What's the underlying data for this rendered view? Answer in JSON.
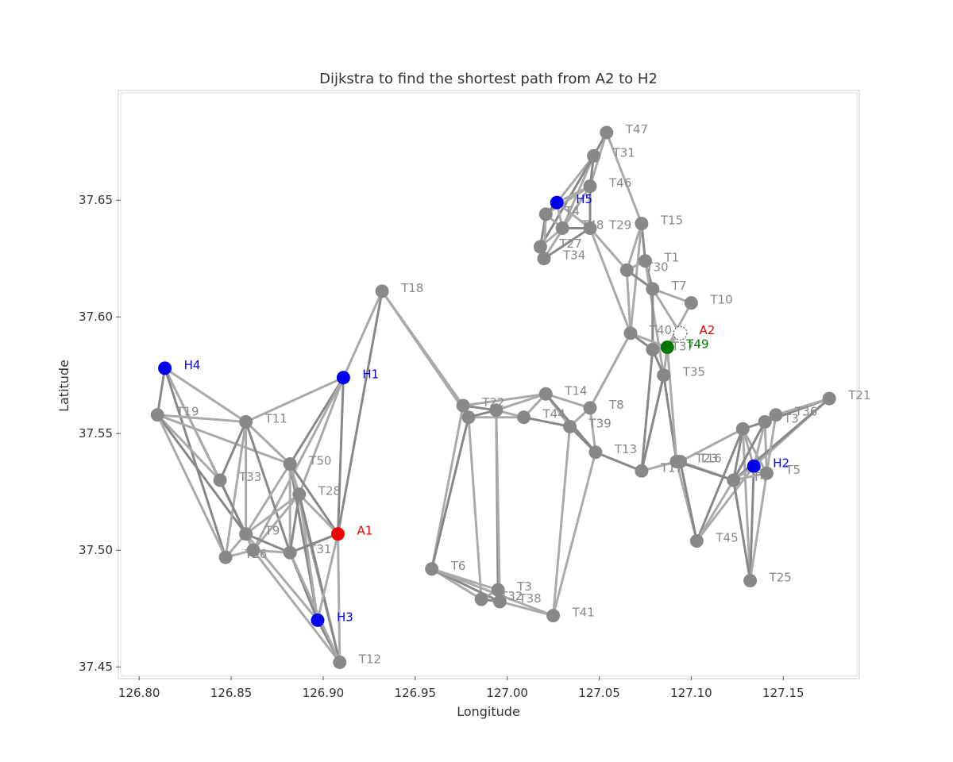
{
  "chart_data": {
    "type": "scatter",
    "title": "Dijkstra to find the shortest path from A2 to H2",
    "xlabel": "Longitude",
    "ylabel": "Latitude",
    "xlim": [
      126.79,
      127.19
    ],
    "ylim": [
      37.446,
      37.696
    ],
    "xticks": [
      "126.80",
      "126.85",
      "126.90",
      "126.95",
      "127.00",
      "127.05",
      "127.10",
      "127.15"
    ],
    "xtick_values": [
      126.8,
      126.85,
      126.9,
      126.95,
      127.0,
      127.05,
      127.1,
      127.15
    ],
    "yticks": [
      "37.45",
      "37.50",
      "37.55",
      "37.60",
      "37.65"
    ],
    "ytick_values": [
      37.45,
      37.5,
      37.55,
      37.6,
      37.65
    ],
    "grid": false,
    "colors": {
      "hospital": "#0000ee",
      "accident": "#ee0000",
      "path": "#007700",
      "node": "#888888",
      "edge_light": "#aaaaaa",
      "edge_dark": "#888888",
      "label_gray": "#888888"
    },
    "nodes": [
      {
        "id": "T47",
        "x": 127.054,
        "y": 37.679,
        "kind": "node",
        "label": "T47"
      },
      {
        "id": "T31a",
        "x": 127.047,
        "y": 37.669,
        "kind": "node",
        "label": "T31"
      },
      {
        "id": "T46",
        "x": 127.045,
        "y": 37.656,
        "kind": "node",
        "label": "T46"
      },
      {
        "id": "H5",
        "x": 127.027,
        "y": 37.649,
        "kind": "hospital",
        "label": "H5"
      },
      {
        "id": "N4",
        "x": 127.021,
        "y": 37.644,
        "kind": "node",
        "label": "T4"
      },
      {
        "id": "T48",
        "x": 127.03,
        "y": 37.638,
        "kind": "node",
        "label": "T48"
      },
      {
        "id": "T29",
        "x": 127.045,
        "y": 37.638,
        "kind": "node",
        "label": "T29"
      },
      {
        "id": "T27",
        "x": 127.018,
        "y": 37.63,
        "kind": "node",
        "label": "T27"
      },
      {
        "id": "T34",
        "x": 127.02,
        "y": 37.625,
        "kind": "node",
        "label": "T34"
      },
      {
        "id": "T15",
        "x": 127.073,
        "y": 37.64,
        "kind": "node",
        "label": "T15"
      },
      {
        "id": "T1",
        "x": 127.075,
        "y": 37.624,
        "kind": "node",
        "label": "T1"
      },
      {
        "id": "T30",
        "x": 127.065,
        "y": 37.62,
        "kind": "node",
        "label": "T30"
      },
      {
        "id": "T7",
        "x": 127.079,
        "y": 37.612,
        "kind": "node",
        "label": "T7"
      },
      {
        "id": "T10",
        "x": 127.1,
        "y": 37.606,
        "kind": "node",
        "label": "T10"
      },
      {
        "id": "A2",
        "x": 127.094,
        "y": 37.593,
        "kind": "accident-hollow",
        "label": "A2"
      },
      {
        "id": "T40",
        "x": 127.067,
        "y": 37.593,
        "kind": "node",
        "label": "T40"
      },
      {
        "id": "T37",
        "x": 127.079,
        "y": 37.586,
        "kind": "node",
        "label": "T37"
      },
      {
        "id": "T49",
        "x": 127.087,
        "y": 37.587,
        "kind": "path",
        "label": "T49"
      },
      {
        "id": "T35",
        "x": 127.085,
        "y": 37.575,
        "kind": "node",
        "label": "T35"
      },
      {
        "id": "T18",
        "x": 126.932,
        "y": 37.611,
        "kind": "node",
        "label": "T18"
      },
      {
        "id": "H4",
        "x": 126.814,
        "y": 37.578,
        "kind": "hospital",
        "label": "H4"
      },
      {
        "id": "H1",
        "x": 126.911,
        "y": 37.574,
        "kind": "hospital",
        "label": "H1"
      },
      {
        "id": "T19",
        "x": 126.81,
        "y": 37.558,
        "kind": "node",
        "label": "T19"
      },
      {
        "id": "T11",
        "x": 126.858,
        "y": 37.555,
        "kind": "node",
        "label": "T11"
      },
      {
        "id": "T50",
        "x": 126.882,
        "y": 37.537,
        "kind": "node",
        "label": "T50"
      },
      {
        "id": "T33",
        "x": 126.844,
        "y": 37.53,
        "kind": "node",
        "label": "T33"
      },
      {
        "id": "T28",
        "x": 126.887,
        "y": 37.524,
        "kind": "node",
        "label": "T28"
      },
      {
        "id": "A1",
        "x": 126.908,
        "y": 37.507,
        "kind": "accident",
        "label": "A1"
      },
      {
        "id": "T9",
        "x": 126.858,
        "y": 37.507,
        "kind": "node",
        "label": "T9"
      },
      {
        "id": "T26",
        "x": 126.847,
        "y": 37.497,
        "kind": "node",
        "label": "T26"
      },
      {
        "id": "T2a",
        "x": 126.862,
        "y": 37.5,
        "kind": "node",
        "label": ""
      },
      {
        "id": "T31b",
        "x": 126.882,
        "y": 37.499,
        "kind": "node",
        "label": "T31"
      },
      {
        "id": "H3",
        "x": 126.897,
        "y": 37.47,
        "kind": "hospital",
        "label": "H3"
      },
      {
        "id": "T12",
        "x": 126.909,
        "y": 37.452,
        "kind": "node",
        "label": "T12"
      },
      {
        "id": "T22",
        "x": 126.976,
        "y": 37.562,
        "kind": "node",
        "label": "T22"
      },
      {
        "id": "T22b",
        "x": 126.979,
        "y": 37.557,
        "kind": "node",
        "label": ""
      },
      {
        "id": "T44a",
        "x": 126.994,
        "y": 37.56,
        "kind": "node",
        "label": ""
      },
      {
        "id": "T44",
        "x": 127.009,
        "y": 37.557,
        "kind": "node",
        "label": "T44"
      },
      {
        "id": "T14",
        "x": 127.021,
        "y": 37.567,
        "kind": "node",
        "label": "T14"
      },
      {
        "id": "T39",
        "x": 127.034,
        "y": 37.553,
        "kind": "node",
        "label": "T39"
      },
      {
        "id": "T8",
        "x": 127.045,
        "y": 37.561,
        "kind": "node",
        "label": "T8"
      },
      {
        "id": "T13",
        "x": 127.048,
        "y": 37.542,
        "kind": "node",
        "label": "T13"
      },
      {
        "id": "T17",
        "x": 127.073,
        "y": 37.534,
        "kind": "node",
        "label": "T17"
      },
      {
        "id": "T23",
        "x": 127.092,
        "y": 37.538,
        "kind": "node",
        "label": "T23"
      },
      {
        "id": "T16",
        "x": 127.094,
        "y": 37.538,
        "kind": "node",
        "label": "T16"
      },
      {
        "id": "T6",
        "x": 126.959,
        "y": 37.492,
        "kind": "node",
        "label": "T6"
      },
      {
        "id": "T3",
        "x": 126.995,
        "y": 37.483,
        "kind": "node",
        "label": "T3"
      },
      {
        "id": "T32",
        "x": 126.986,
        "y": 37.479,
        "kind": "node",
        "label": "T32"
      },
      {
        "id": "T38",
        "x": 126.996,
        "y": 37.478,
        "kind": "node",
        "label": "T38"
      },
      {
        "id": "T41",
        "x": 127.025,
        "y": 37.472,
        "kind": "node",
        "label": "T41"
      },
      {
        "id": "T45",
        "x": 127.103,
        "y": 37.504,
        "kind": "node",
        "label": "T45"
      },
      {
        "id": "T25",
        "x": 127.132,
        "y": 37.487,
        "kind": "node",
        "label": "T25"
      },
      {
        "id": "T36a",
        "x": 127.128,
        "y": 37.552,
        "kind": "node",
        "label": ""
      },
      {
        "id": "T36b",
        "x": 127.14,
        "y": 37.555,
        "kind": "node",
        "label": "T3"
      },
      {
        "id": "T36",
        "x": 127.146,
        "y": 37.558,
        "kind": "node",
        "label": "T36"
      },
      {
        "id": "T21",
        "x": 127.175,
        "y": 37.565,
        "kind": "node",
        "label": "T21"
      },
      {
        "id": "H2",
        "x": 127.134,
        "y": 37.536,
        "kind": "hospital",
        "label": "H2"
      },
      {
        "id": "T4b",
        "x": 127.123,
        "y": 37.53,
        "kind": "node",
        "label": "T4"
      },
      {
        "id": "T5",
        "x": 127.141,
        "y": 37.533,
        "kind": "node",
        "label": "T5"
      }
    ],
    "edges": [
      [
        "T47",
        "T31a"
      ],
      [
        "T47",
        "T46"
      ],
      [
        "T47",
        "T15"
      ],
      [
        "T31a",
        "T46"
      ],
      [
        "T31a",
        "H5"
      ],
      [
        "T31a",
        "T48"
      ],
      [
        "T31a",
        "T27"
      ],
      [
        "T46",
        "H5"
      ],
      [
        "T46",
        "T48"
      ],
      [
        "T46",
        "T29"
      ],
      [
        "T46",
        "N4"
      ],
      [
        "T46",
        "T34"
      ],
      [
        "H5",
        "N4"
      ],
      [
        "H5",
        "T48"
      ],
      [
        "H5",
        "T29"
      ],
      [
        "N4",
        "T27"
      ],
      [
        "N4",
        "T34"
      ],
      [
        "N4",
        "T48"
      ],
      [
        "T48",
        "T29"
      ],
      [
        "T48",
        "T27"
      ],
      [
        "T27",
        "T34"
      ],
      [
        "T29",
        "T34"
      ],
      [
        "T29",
        "T40"
      ],
      [
        "T29",
        "T30"
      ],
      [
        "T15",
        "T1"
      ],
      [
        "T15",
        "T30"
      ],
      [
        "T15",
        "T40"
      ],
      [
        "T1",
        "T7"
      ],
      [
        "T1",
        "T30"
      ],
      [
        "T1",
        "T35"
      ],
      [
        "T30",
        "T7"
      ],
      [
        "T30",
        "T40"
      ],
      [
        "T7",
        "T10"
      ],
      [
        "T7",
        "T37"
      ],
      [
        "T7",
        "A2"
      ],
      [
        "T10",
        "T49"
      ],
      [
        "T40",
        "T37"
      ],
      [
        "T40",
        "T49"
      ],
      [
        "T37",
        "T49"
      ],
      [
        "T37",
        "T35"
      ],
      [
        "T49",
        "A2"
      ],
      [
        "T49",
        "T35"
      ],
      [
        "T35",
        "T23"
      ],
      [
        "T49",
        "T23"
      ],
      [
        "T40",
        "T8"
      ],
      [
        "T37",
        "T17"
      ],
      [
        "T35",
        "T17"
      ],
      [
        "T18",
        "H1"
      ],
      [
        "T18",
        "A1"
      ],
      [
        "T18",
        "T22"
      ],
      [
        "T18",
        "T22b"
      ],
      [
        "H4",
        "T19"
      ],
      [
        "H4",
        "T33"
      ],
      [
        "H4",
        "T9"
      ],
      [
        "H4",
        "T26"
      ],
      [
        "H4",
        "T11"
      ],
      [
        "H1",
        "T11"
      ],
      [
        "H1",
        "T50"
      ],
      [
        "H1",
        "T28"
      ],
      [
        "H1",
        "T2a"
      ],
      [
        "H1",
        "A1"
      ],
      [
        "T19",
        "T11"
      ],
      [
        "T19",
        "T33"
      ],
      [
        "T19",
        "T9"
      ],
      [
        "T19",
        "T26"
      ],
      [
        "T19",
        "T50"
      ],
      [
        "T11",
        "T33"
      ],
      [
        "T11",
        "T9"
      ],
      [
        "T11",
        "T26"
      ],
      [
        "T11",
        "T31b"
      ],
      [
        "T11",
        "T50"
      ],
      [
        "T50",
        "T28"
      ],
      [
        "T50",
        "A1"
      ],
      [
        "T50",
        "T9"
      ],
      [
        "T50",
        "T31b"
      ],
      [
        "T50",
        "H3"
      ],
      [
        "T50",
        "T12"
      ],
      [
        "T33",
        "T9"
      ],
      [
        "T33",
        "T2a"
      ],
      [
        "T28",
        "A1"
      ],
      [
        "T28",
        "T9"
      ],
      [
        "T28",
        "T31b"
      ],
      [
        "T28",
        "H3"
      ],
      [
        "T28",
        "T2a"
      ],
      [
        "T28",
        "T12"
      ],
      [
        "A1",
        "H3"
      ],
      [
        "A1",
        "T12"
      ],
      [
        "A1",
        "T31b"
      ],
      [
        "T9",
        "T2a"
      ],
      [
        "T9",
        "T26"
      ],
      [
        "T9",
        "T31b"
      ],
      [
        "T26",
        "T2a"
      ],
      [
        "T2a",
        "T31b"
      ],
      [
        "T31b",
        "H3"
      ],
      [
        "T2a",
        "T12"
      ],
      [
        "T9",
        "H3"
      ],
      [
        "H3",
        "T12"
      ],
      [
        "T31b",
        "T12"
      ],
      [
        "T22",
        "T22b"
      ],
      [
        "T22",
        "T44a"
      ],
      [
        "T22",
        "T14"
      ],
      [
        "T22",
        "T6"
      ],
      [
        "T22b",
        "T44a"
      ],
      [
        "T22b",
        "T44"
      ],
      [
        "T22b",
        "T32"
      ],
      [
        "T22b",
        "T6"
      ],
      [
        "T44a",
        "T44"
      ],
      [
        "T44a",
        "T14"
      ],
      [
        "T44a",
        "T3"
      ],
      [
        "T44a",
        "T38"
      ],
      [
        "T44",
        "T14"
      ],
      [
        "T44",
        "T39"
      ],
      [
        "T14",
        "T39"
      ],
      [
        "T14",
        "T8"
      ],
      [
        "T14",
        "T13"
      ],
      [
        "T39",
        "T8"
      ],
      [
        "T39",
        "T41"
      ],
      [
        "T39",
        "T13"
      ],
      [
        "T8",
        "T13"
      ],
      [
        "T8",
        "T40"
      ],
      [
        "T13",
        "T17"
      ],
      [
        "T13",
        "T41"
      ],
      [
        "T17",
        "T23"
      ],
      [
        "T17",
        "T35"
      ],
      [
        "T23",
        "T16"
      ],
      [
        "T23",
        "T45"
      ],
      [
        "T16",
        "T45"
      ],
      [
        "T16",
        "T4b"
      ],
      [
        "T16",
        "T36a"
      ],
      [
        "T23",
        "T4b"
      ],
      [
        "T6",
        "T32"
      ],
      [
        "T6",
        "T3"
      ],
      [
        "T6",
        "T38"
      ],
      [
        "T6",
        "T41"
      ],
      [
        "T32",
        "T3"
      ],
      [
        "T32",
        "T38"
      ],
      [
        "T3",
        "T38"
      ],
      [
        "T38",
        "T41"
      ],
      [
        "T45",
        "T36a"
      ],
      [
        "T45",
        "T4b"
      ],
      [
        "T45",
        "H2"
      ],
      [
        "T36a",
        "T36b"
      ],
      [
        "T36a",
        "H2"
      ],
      [
        "T36a",
        "T5"
      ],
      [
        "T36a",
        "T4b"
      ],
      [
        "T36a",
        "T25"
      ],
      [
        "T36b",
        "T36"
      ],
      [
        "T36b",
        "T21"
      ],
      [
        "T36b",
        "H2"
      ],
      [
        "T36b",
        "T5"
      ],
      [
        "T36b",
        "T4b"
      ],
      [
        "T36",
        "T21"
      ],
      [
        "T21",
        "H2"
      ],
      [
        "T21",
        "T4b"
      ],
      [
        "H2",
        "T5"
      ],
      [
        "H2",
        "T4b"
      ],
      [
        "H2",
        "T25"
      ],
      [
        "T5",
        "T4b"
      ],
      [
        "T5",
        "T25"
      ],
      [
        "T4b",
        "T25"
      ],
      [
        "T36",
        "T5"
      ]
    ]
  }
}
